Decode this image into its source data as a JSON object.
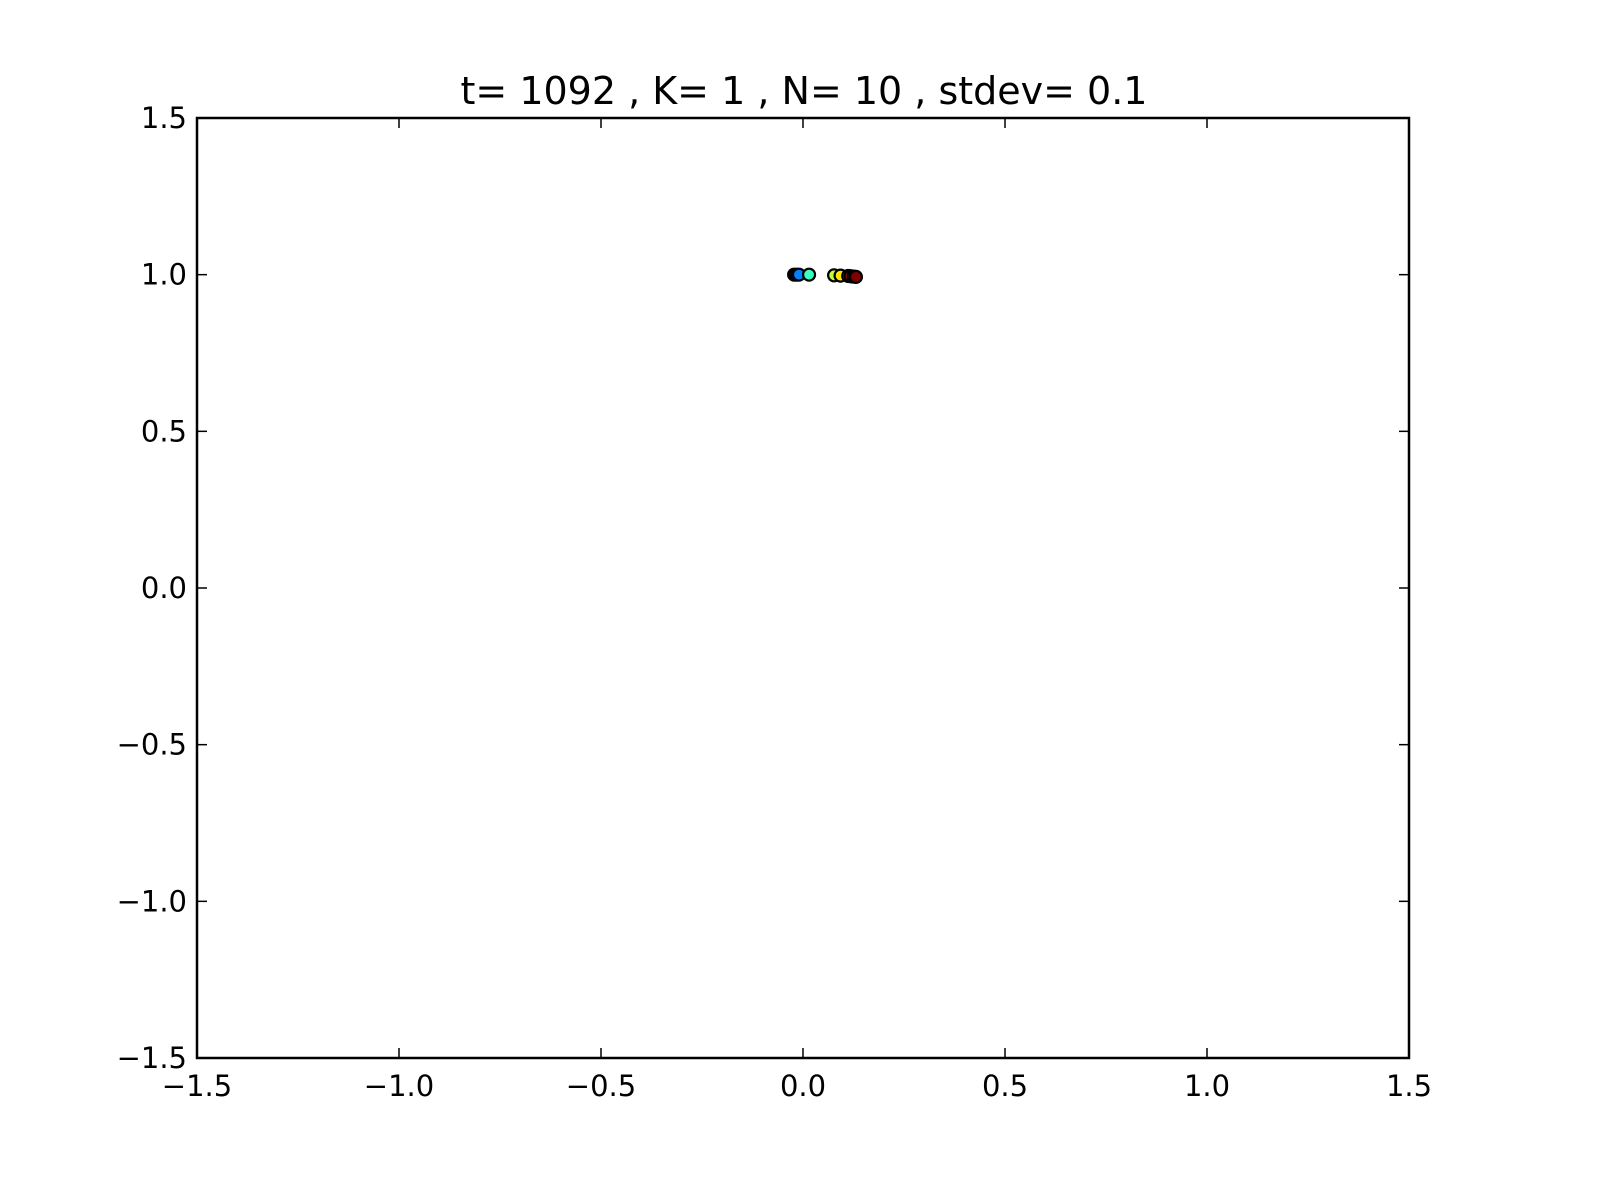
{
  "chart_data": {
    "type": "scatter",
    "title": "t= 1092 , K= 1 , N= 10 , stdev= 0.1",
    "xlabel": "",
    "ylabel": "",
    "xlim": [
      -1.5,
      1.5
    ],
    "ylim": [
      -1.5,
      1.5
    ],
    "grid": false,
    "x_ticks": [
      -1.5,
      -1.0,
      -0.5,
      0.0,
      0.5,
      1.0,
      1.5
    ],
    "y_ticks": [
      -1.5,
      -1.0,
      -0.5,
      0.0,
      0.5,
      1.0,
      1.5
    ],
    "x_tick_labels": [
      "−1.5",
      "−1.0",
      "−0.5",
      "0.0",
      "0.5",
      "1.0",
      "1.5"
    ],
    "y_tick_labels": [
      "−1.5",
      "−1.0",
      "−0.5",
      "0.0",
      "0.5",
      "1.0",
      "1.5"
    ],
    "points": [
      {
        "x": -0.022,
        "y": 1.0,
        "color": "#00007f"
      },
      {
        "x": -0.016,
        "y": 1.0,
        "color": "#0000ff"
      },
      {
        "x": -0.01,
        "y": 1.0,
        "color": "#0080ff"
      },
      {
        "x": 0.015,
        "y": 1.0,
        "color": "#38ffbe"
      },
      {
        "x": 0.077,
        "y": 0.998,
        "color": "#beff38"
      },
      {
        "x": 0.093,
        "y": 0.997,
        "color": "#ffe600"
      },
      {
        "x": 0.112,
        "y": 0.996,
        "color": "#ff9400"
      },
      {
        "x": 0.118,
        "y": 0.995,
        "color": "#ff1e00"
      },
      {
        "x": 0.125,
        "y": 0.994,
        "color": "#ff0000"
      },
      {
        "x": 0.131,
        "y": 0.993,
        "color": "#7f0000"
      }
    ]
  }
}
